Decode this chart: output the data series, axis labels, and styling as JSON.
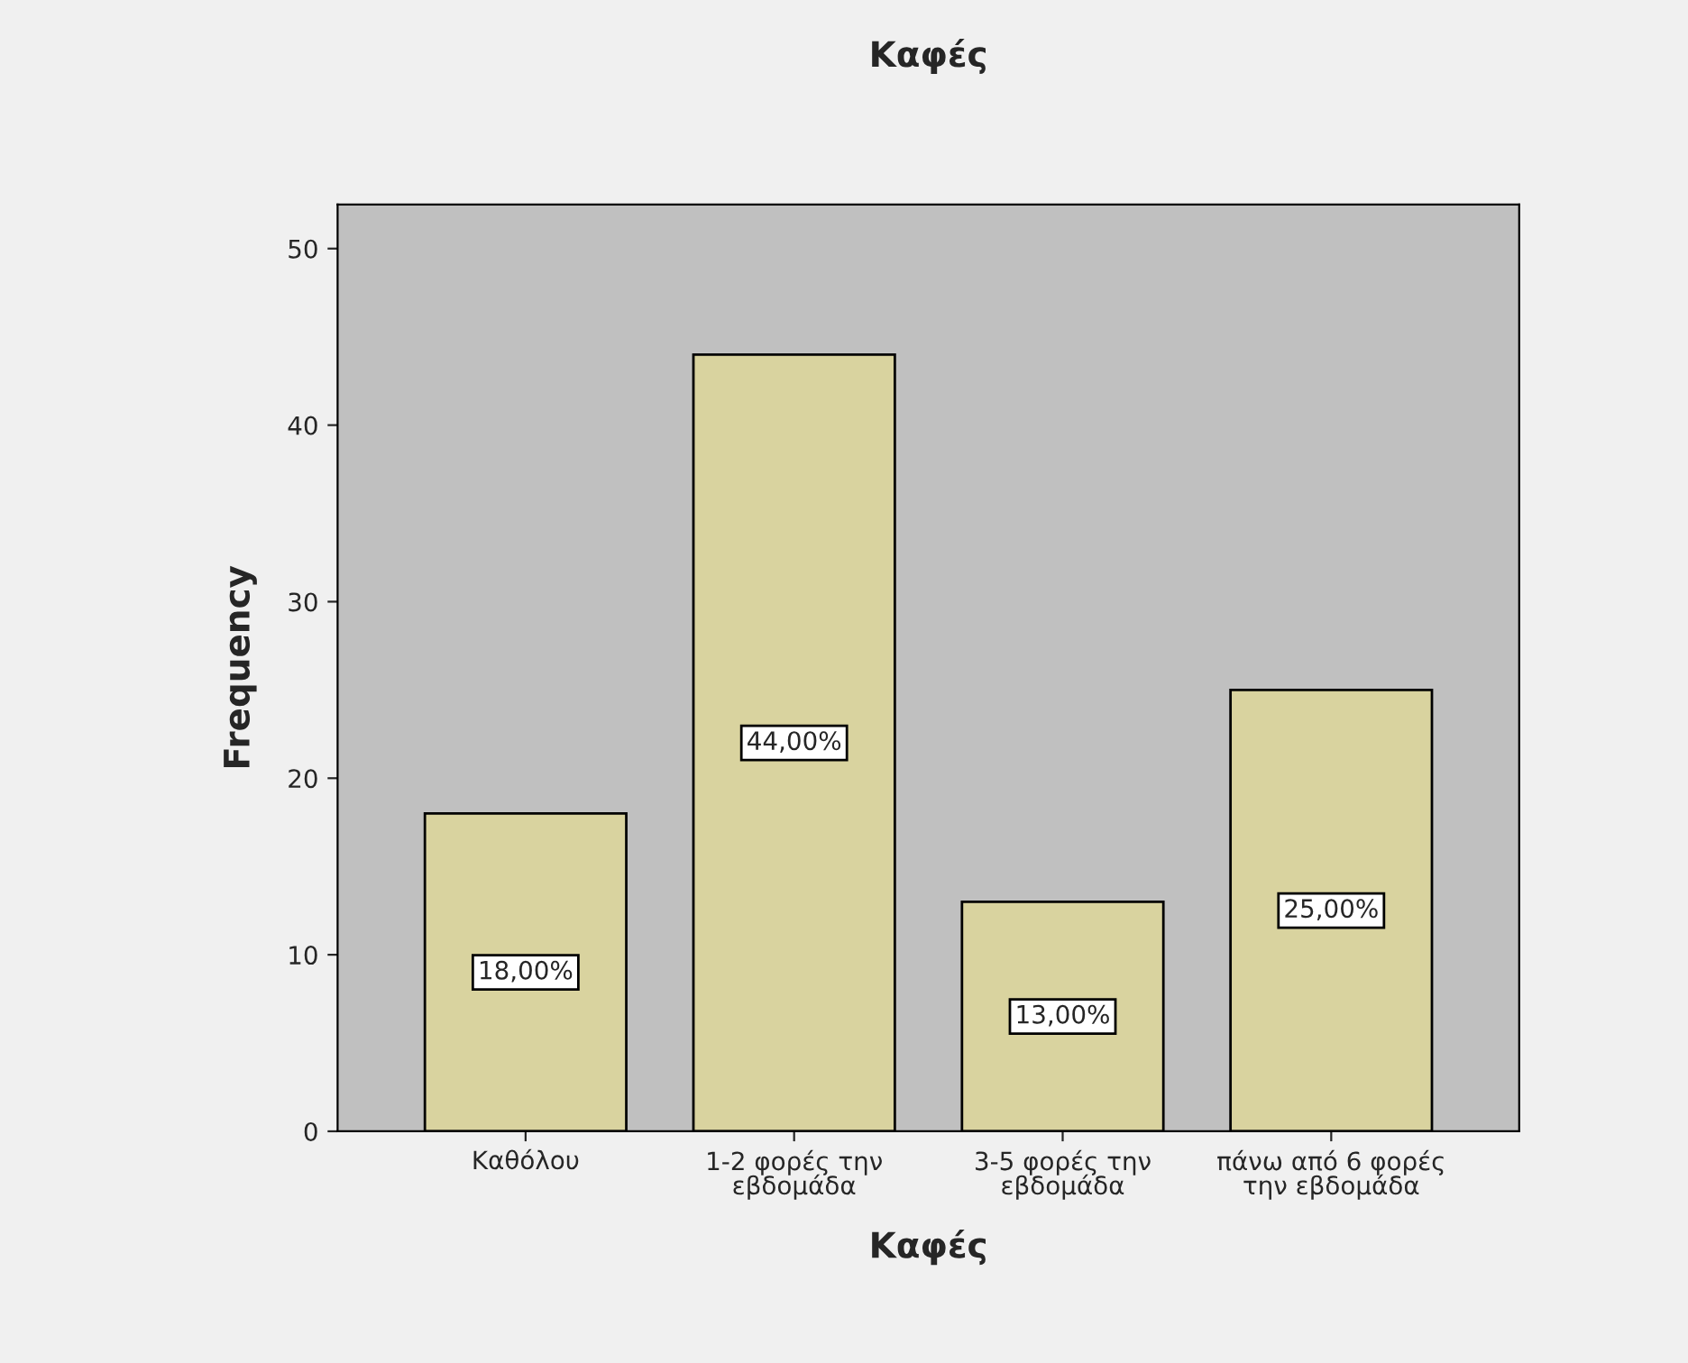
{
  "chart_data": {
    "type": "bar",
    "title": "Καφές",
    "xlabel": "Καφές",
    "ylabel": "Frequency",
    "categories": [
      "Καθόλου",
      "1-2 φορές την\nεβδομάδα",
      "3-5 φορές την\nεβδομάδα",
      "πάνω από 6 φορές\nτην εβδομάδα"
    ],
    "values": [
      18,
      44,
      13,
      25
    ],
    "value_labels": [
      "18,00%",
      "44,00%",
      "13,00%",
      "25,00%"
    ],
    "color": "#d9d39f",
    "ylim": [
      0,
      52.5
    ],
    "yticks": [
      0,
      10,
      20,
      30,
      40,
      50
    ],
    "grid": false,
    "legend": false
  }
}
